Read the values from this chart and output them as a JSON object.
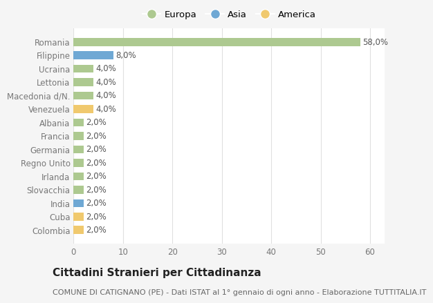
{
  "categories": [
    "Romania",
    "Filippine",
    "Ucraina",
    "Lettonia",
    "Macedonia d/N.",
    "Venezuela",
    "Albania",
    "Francia",
    "Germania",
    "Regno Unito",
    "Irlanda",
    "Slovacchia",
    "India",
    "Cuba",
    "Colombia"
  ],
  "values": [
    58.0,
    8.0,
    4.0,
    4.0,
    4.0,
    4.0,
    2.0,
    2.0,
    2.0,
    2.0,
    2.0,
    2.0,
    2.0,
    2.0,
    2.0
  ],
  "colors": [
    "#adc990",
    "#6fa8d4",
    "#adc990",
    "#adc990",
    "#adc990",
    "#f0c96e",
    "#adc990",
    "#adc990",
    "#adc990",
    "#adc990",
    "#adc990",
    "#adc990",
    "#6fa8d4",
    "#f0c96e",
    "#f0c96e"
  ],
  "legend_labels": [
    "Europa",
    "Asia",
    "America"
  ],
  "legend_colors": [
    "#adc990",
    "#6fa8d4",
    "#f0c96e"
  ],
  "xlim": [
    0,
    63
  ],
  "xticks": [
    0,
    10,
    20,
    30,
    40,
    50,
    60
  ],
  "title": "Cittadini Stranieri per Cittadinanza",
  "subtitle": "COMUNE DI CATIGNANO (PE) - Dati ISTAT al 1° gennaio di ogni anno - Elaborazione TUTTITALIA.IT",
  "bg_color": "#f5f5f5",
  "plot_bg_color": "#ffffff",
  "grid_color": "#e0e0e0",
  "bar_label_color": "#555555",
  "tick_label_color": "#777777",
  "title_fontsize": 11,
  "subtitle_fontsize": 8,
  "tick_fontsize": 8.5,
  "label_fontsize": 8.5,
  "legend_fontsize": 9.5
}
